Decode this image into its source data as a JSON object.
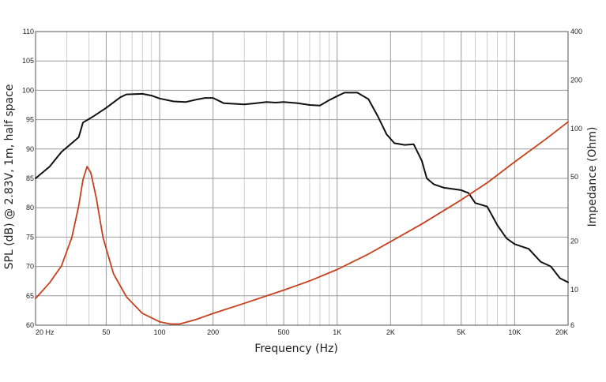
{
  "chart_data": {
    "type": "line",
    "xlabel": "Frequency (Hz)",
    "ylabel": "SPL (dB) @ 2.83V, 1m, half space",
    "y2label": "Impedance (Ohm)",
    "xscale": "log",
    "xlim": [
      20,
      20000
    ],
    "ylim": [
      60,
      110
    ],
    "y2lim": [
      6,
      400
    ],
    "y2scale": "log",
    "grid": true,
    "x_ticks": [
      {
        "value": 20,
        "label": "20  Hz"
      },
      {
        "value": 50,
        "label": "50"
      },
      {
        "value": 100,
        "label": "100"
      },
      {
        "value": 200,
        "label": "200"
      },
      {
        "value": 500,
        "label": "500"
      },
      {
        "value": 1000,
        "label": "1K"
      },
      {
        "value": 2000,
        "label": "2K"
      },
      {
        "value": 5000,
        "label": "5K"
      },
      {
        "value": 10000,
        "label": "10K"
      },
      {
        "value": 20000,
        "label": "20K"
      }
    ],
    "y_ticks": [
      "60",
      "65",
      "70",
      "75",
      "80",
      "85",
      "90",
      "95",
      "100",
      "105",
      "110"
    ],
    "y2_ticks": [
      {
        "value": 6,
        "label": "6"
      },
      {
        "value": 10,
        "label": "10"
      },
      {
        "value": 20,
        "label": "20"
      },
      {
        "value": 50,
        "label": "50"
      },
      {
        "value": 100,
        "label": "100"
      },
      {
        "value": 200,
        "label": "200"
      },
      {
        "value": 400,
        "label": "400"
      }
    ],
    "series": [
      {
        "axis": "left",
        "color": "#111111",
        "points": [
          [
            20,
            85
          ],
          [
            24,
            87
          ],
          [
            28,
            89.5
          ],
          [
            32,
            91
          ],
          [
            35,
            92
          ],
          [
            37,
            94.5
          ],
          [
            42,
            95.5
          ],
          [
            50,
            97
          ],
          [
            60,
            98.8
          ],
          [
            65,
            99.3
          ],
          [
            80,
            99.4
          ],
          [
            90,
            99.1
          ],
          [
            100,
            98.6
          ],
          [
            120,
            98.1
          ],
          [
            140,
            98
          ],
          [
            160,
            98.4
          ],
          [
            180,
            98.7
          ],
          [
            200,
            98.7
          ],
          [
            230,
            97.8
          ],
          [
            300,
            97.6
          ],
          [
            350,
            97.8
          ],
          [
            400,
            98
          ],
          [
            450,
            97.9
          ],
          [
            500,
            98
          ],
          [
            600,
            97.8
          ],
          [
            700,
            97.5
          ],
          [
            800,
            97.4
          ],
          [
            900,
            98.3
          ],
          [
            1000,
            99
          ],
          [
            1100,
            99.6
          ],
          [
            1300,
            99.6
          ],
          [
            1500,
            98.5
          ],
          [
            1700,
            95.5
          ],
          [
            1900,
            92.5
          ],
          [
            2100,
            91
          ],
          [
            2400,
            90.7
          ],
          [
            2700,
            90.8
          ],
          [
            3000,
            88
          ],
          [
            3200,
            85
          ],
          [
            3500,
            84
          ],
          [
            4000,
            83.4
          ],
          [
            5000,
            83
          ],
          [
            5500,
            82.5
          ],
          [
            6000,
            80.8
          ],
          [
            7000,
            80.2
          ],
          [
            8000,
            77
          ],
          [
            9000,
            74.8
          ],
          [
            10000,
            73.8
          ],
          [
            12000,
            73
          ],
          [
            14000,
            70.8
          ],
          [
            16000,
            70
          ],
          [
            18000,
            68
          ],
          [
            20000,
            67.3
          ]
        ]
      },
      {
        "axis": "right",
        "color": "#c8401c",
        "points": [
          [
            20,
            8.8
          ],
          [
            24,
            11
          ],
          [
            28,
            14
          ],
          [
            32,
            21
          ],
          [
            35,
            33
          ],
          [
            37,
            48
          ],
          [
            39,
            58
          ],
          [
            41,
            53
          ],
          [
            44,
            37
          ],
          [
            48,
            21
          ],
          [
            55,
            12.5
          ],
          [
            65,
            9
          ],
          [
            80,
            7.1
          ],
          [
            100,
            6.3
          ],
          [
            115,
            6.1
          ],
          [
            130,
            6.1
          ],
          [
            160,
            6.5
          ],
          [
            200,
            7.1
          ],
          [
            300,
            8.2
          ],
          [
            500,
            9.9
          ],
          [
            700,
            11.3
          ],
          [
            1000,
            13.3
          ],
          [
            1500,
            16.6
          ],
          [
            2000,
            19.8
          ],
          [
            3000,
            25.5
          ],
          [
            5000,
            36
          ],
          [
            7000,
            46
          ],
          [
            10000,
            62
          ],
          [
            15000,
            86
          ],
          [
            20000,
            110
          ]
        ]
      }
    ]
  }
}
